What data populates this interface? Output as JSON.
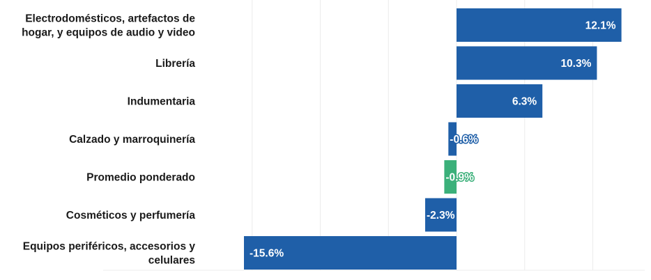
{
  "chart_data": {
    "type": "bar",
    "orientation": "horizontal",
    "categories": [
      [
        "Electrodomésticos, artefactos de",
        "hogar, y equipos de audio y video"
      ],
      [
        "Librería"
      ],
      [
        "Indumentaria"
      ],
      [
        "Calzado y marroquinería"
      ],
      [
        "Promedio ponderado"
      ],
      [
        "Cosméticos y perfumería"
      ],
      [
        "Equipos periféricos, accesorios y",
        "celulares"
      ]
    ],
    "values": [
      12.1,
      10.3,
      6.3,
      -0.6,
      -0.9,
      -2.3,
      -15.6
    ],
    "value_labels": [
      "12.1%",
      "10.3%",
      "6.3%",
      "-0.6%",
      "-0.9%",
      "-2.3%",
      "-15.6%"
    ],
    "highlight_index": 4,
    "xlim": [
      -15.6,
      12.1
    ],
    "grid": true,
    "legend": "none"
  },
  "colors": {
    "bar": "#1f5fa8",
    "highlight": "#3bb07a",
    "category_text": "#1a1a1a",
    "value_text": "#ffffff",
    "grid": "#ececec"
  }
}
